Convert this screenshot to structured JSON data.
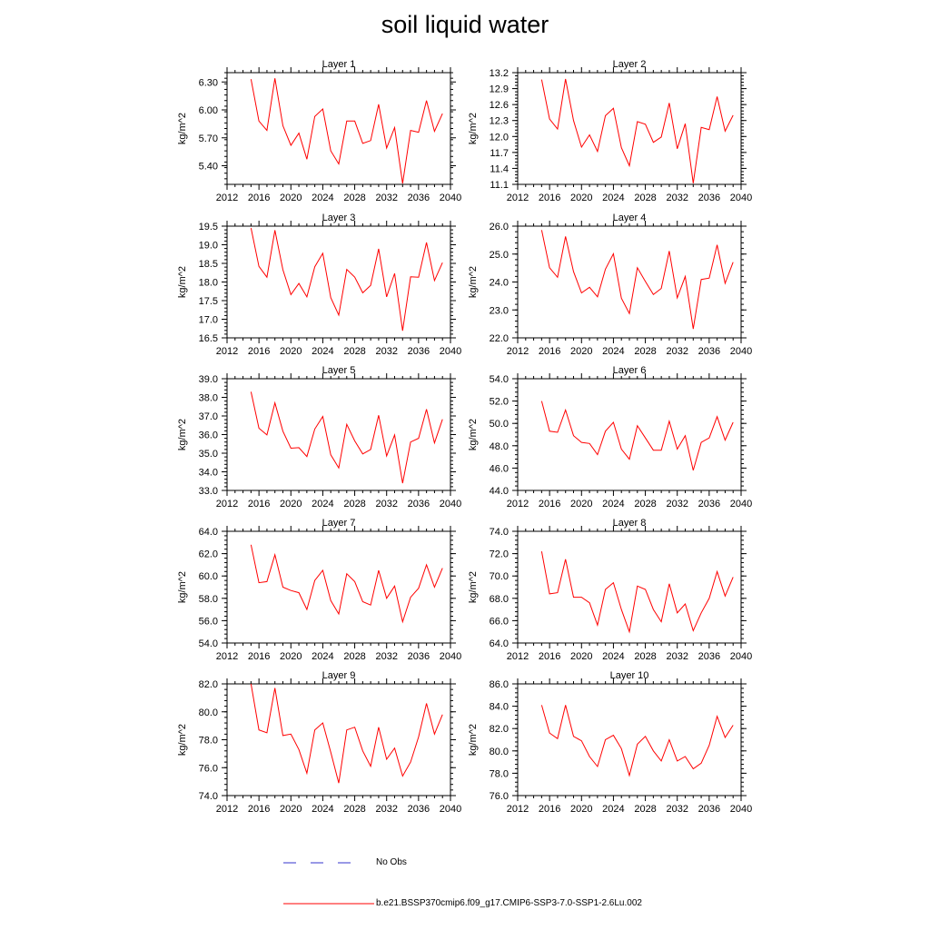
{
  "title": "soil liquid water",
  "legend": [
    {
      "label": "No Obs",
      "color": "#3333cc",
      "style": "dashed"
    },
    {
      "label": "b.e21.BSSP370cmip6.f09_g17.CMIP6-SSP3-7.0-SSP1-2.6Lu.002",
      "color": "#ff0000",
      "style": "solid"
    }
  ],
  "chart_data": [
    {
      "type": "line",
      "title": "Layer 1",
      "ylabel": "kg/m^2",
      "xlim": [
        2012,
        2040
      ],
      "ylim": [
        5.2,
        6.4
      ],
      "xticks": [
        "2012",
        "2016",
        "2020",
        "2024",
        "2028",
        "2032",
        "2036",
        "2040"
      ],
      "yticks": [
        "5.40",
        "5.70",
        "6.00",
        "6.30"
      ],
      "x": [
        2015,
        2016,
        2017,
        2018,
        2019,
        2020,
        2021,
        2022,
        2023,
        2024,
        2025,
        2026,
        2027,
        2028,
        2029,
        2030,
        2031,
        2032,
        2033,
        2034,
        2035,
        2036,
        2037,
        2038,
        2039
      ],
      "series": [
        {
          "values": [
            6.33,
            5.88,
            5.78,
            6.34,
            5.83,
            5.62,
            5.75,
            5.47,
            5.93,
            6.01,
            5.56,
            5.42,
            5.88,
            5.88,
            5.64,
            5.67,
            6.06,
            5.59,
            5.81,
            5.21,
            5.78,
            5.76,
            6.1,
            5.77,
            5.96
          ]
        }
      ]
    },
    {
      "type": "line",
      "title": "Layer 2",
      "ylabel": "kg/m^2",
      "xlim": [
        2012,
        2040
      ],
      "ylim": [
        11.1,
        13.2
      ],
      "xticks": [
        "2012",
        "2016",
        "2020",
        "2024",
        "2028",
        "2032",
        "2036",
        "2040"
      ],
      "yticks": [
        "11.1",
        "11.4",
        "11.7",
        "12.0",
        "12.3",
        "12.6",
        "12.9",
        "13.2"
      ],
      "x": [
        2015,
        2016,
        2017,
        2018,
        2019,
        2020,
        2021,
        2022,
        2023,
        2024,
        2025,
        2026,
        2027,
        2028,
        2029,
        2030,
        2031,
        2032,
        2033,
        2034,
        2035,
        2036,
        2037,
        2038,
        2039
      ],
      "series": [
        {
          "values": [
            13.07,
            12.33,
            12.14,
            13.08,
            12.3,
            11.8,
            12.03,
            11.72,
            12.39,
            12.53,
            11.79,
            11.45,
            12.28,
            12.23,
            11.89,
            11.99,
            12.63,
            11.77,
            12.24,
            11.12,
            12.17,
            12.13,
            12.75,
            12.1,
            12.4
          ]
        }
      ]
    },
    {
      "type": "line",
      "title": "Layer 3",
      "ylabel": "kg/m^2",
      "xlim": [
        2012,
        2040
      ],
      "ylim": [
        16.5,
        19.5
      ],
      "xticks": [
        "2012",
        "2016",
        "2020",
        "2024",
        "2028",
        "2032",
        "2036",
        "2040"
      ],
      "yticks": [
        "16.5",
        "17.0",
        "17.5",
        "18.0",
        "18.5",
        "19.0",
        "19.5"
      ],
      "x": [
        2015,
        2016,
        2017,
        2018,
        2019,
        2020,
        2021,
        2022,
        2023,
        2024,
        2025,
        2026,
        2027,
        2028,
        2029,
        2030,
        2031,
        2032,
        2033,
        2034,
        2035,
        2036,
        2037,
        2038,
        2039
      ],
      "series": [
        {
          "values": [
            19.45,
            18.42,
            18.13,
            19.39,
            18.33,
            17.66,
            17.96,
            17.6,
            18.41,
            18.77,
            17.58,
            17.11,
            18.34,
            18.13,
            17.71,
            17.91,
            18.89,
            17.6,
            18.23,
            16.69,
            18.14,
            18.13,
            19.06,
            18.04,
            18.52
          ]
        }
      ]
    },
    {
      "type": "line",
      "title": "Layer 4",
      "ylabel": "kg/m^2",
      "xlim": [
        2012,
        2040
      ],
      "ylim": [
        22.0,
        26.0
      ],
      "xticks": [
        "2012",
        "2016",
        "2020",
        "2024",
        "2028",
        "2032",
        "2036",
        "2040"
      ],
      "yticks": [
        "22.0",
        "23.0",
        "24.0",
        "25.0",
        "26.0"
      ],
      "x": [
        2015,
        2016,
        2017,
        2018,
        2019,
        2020,
        2021,
        2022,
        2023,
        2024,
        2025,
        2026,
        2027,
        2028,
        2029,
        2030,
        2031,
        2032,
        2033,
        2034,
        2035,
        2036,
        2037,
        2038,
        2039
      ],
      "series": [
        {
          "values": [
            25.86,
            24.51,
            24.17,
            25.63,
            24.37,
            23.61,
            23.81,
            23.47,
            24.46,
            25.01,
            23.42,
            22.87,
            24.51,
            24.02,
            23.55,
            23.77,
            25.11,
            23.43,
            24.2,
            22.32,
            24.09,
            24.14,
            25.33,
            23.95,
            24.71
          ]
        }
      ]
    },
    {
      "type": "line",
      "title": "Layer 5",
      "ylabel": "kg/m^2",
      "xlim": [
        2012,
        2040
      ],
      "ylim": [
        33.0,
        39.0
      ],
      "xticks": [
        "2012",
        "2016",
        "2020",
        "2024",
        "2028",
        "2032",
        "2036",
        "2040"
      ],
      "yticks": [
        "33.0",
        "34.0",
        "35.0",
        "36.0",
        "37.0",
        "38.0",
        "39.0"
      ],
      "x": [
        2015,
        2016,
        2017,
        2018,
        2019,
        2020,
        2021,
        2022,
        2023,
        2024,
        2025,
        2026,
        2027,
        2028,
        2029,
        2030,
        2031,
        2032,
        2033,
        2034,
        2035,
        2036,
        2037,
        2038,
        2039
      ],
      "series": [
        {
          "values": [
            38.3,
            36.34,
            35.98,
            37.7,
            36.18,
            35.27,
            35.3,
            34.82,
            36.3,
            36.97,
            34.91,
            34.21,
            36.55,
            35.66,
            34.96,
            35.2,
            37.04,
            34.85,
            35.98,
            33.39,
            35.6,
            35.8,
            37.36,
            35.55,
            36.82
          ]
        }
      ]
    },
    {
      "type": "line",
      "title": "Layer 6",
      "ylabel": "kg/m^2",
      "xlim": [
        2012,
        2040
      ],
      "ylim": [
        44.0,
        54.0
      ],
      "xticks": [
        "2012",
        "2016",
        "2020",
        "2024",
        "2028",
        "2032",
        "2036",
        "2040"
      ],
      "yticks": [
        "44.0",
        "46.0",
        "48.0",
        "50.0",
        "52.0",
        "54.0"
      ],
      "x": [
        2015,
        2016,
        2017,
        2018,
        2019,
        2020,
        2021,
        2022,
        2023,
        2024,
        2025,
        2026,
        2027,
        2028,
        2029,
        2030,
        2031,
        2032,
        2033,
        2034,
        2035,
        2036,
        2037,
        2038,
        2039
      ],
      "series": [
        {
          "values": [
            52.0,
            49.3,
            49.2,
            51.2,
            48.9,
            48.3,
            48.2,
            47.2,
            49.3,
            50.1,
            47.7,
            46.8,
            49.8,
            48.7,
            47.6,
            47.6,
            50.2,
            47.7,
            48.9,
            45.8,
            48.3,
            48.7,
            50.6,
            48.5,
            50.1
          ]
        }
      ]
    },
    {
      "type": "line",
      "title": "Layer 7",
      "ylabel": "kg/m^2",
      "xlim": [
        2012,
        2040
      ],
      "ylim": [
        54.0,
        64.0
      ],
      "xticks": [
        "2012",
        "2016",
        "2020",
        "2024",
        "2028",
        "2032",
        "2036",
        "2040"
      ],
      "yticks": [
        "54.0",
        "56.0",
        "58.0",
        "60.0",
        "62.0",
        "64.0"
      ],
      "x": [
        2015,
        2016,
        2017,
        2018,
        2019,
        2020,
        2021,
        2022,
        2023,
        2024,
        2025,
        2026,
        2027,
        2028,
        2029,
        2030,
        2031,
        2032,
        2033,
        2034,
        2035,
        2036,
        2037,
        2038,
        2039
      ],
      "series": [
        {
          "values": [
            62.8,
            59.4,
            59.5,
            61.9,
            59.0,
            58.7,
            58.5,
            57.0,
            59.6,
            60.5,
            57.8,
            56.6,
            60.2,
            59.5,
            57.7,
            57.4,
            60.5,
            58.0,
            59.1,
            55.9,
            58.1,
            58.9,
            61.0,
            59.0,
            60.7
          ]
        }
      ]
    },
    {
      "type": "line",
      "title": "Layer 8",
      "ylabel": "kg/m^2",
      "xlim": [
        2012,
        2040
      ],
      "ylim": [
        64.0,
        74.0
      ],
      "xticks": [
        "2012",
        "2016",
        "2020",
        "2024",
        "2028",
        "2032",
        "2036",
        "2040"
      ],
      "yticks": [
        "64.0",
        "66.0",
        "68.0",
        "70.0",
        "72.0",
        "74.0"
      ],
      "x": [
        2015,
        2016,
        2017,
        2018,
        2019,
        2020,
        2021,
        2022,
        2023,
        2024,
        2025,
        2026,
        2027,
        2028,
        2029,
        2030,
        2031,
        2032,
        2033,
        2034,
        2035,
        2036,
        2037,
        2038,
        2039
      ],
      "series": [
        {
          "values": [
            72.2,
            68.4,
            68.5,
            71.5,
            68.1,
            68.1,
            67.6,
            65.6,
            68.8,
            69.4,
            67.0,
            65.0,
            69.1,
            68.8,
            67.0,
            65.9,
            69.3,
            66.7,
            67.5,
            65.1,
            66.7,
            68.0,
            70.4,
            68.2,
            69.9
          ]
        }
      ]
    },
    {
      "type": "line",
      "title": "Layer 9",
      "ylabel": "kg/m^2",
      "xlim": [
        2012,
        2040
      ],
      "ylim": [
        74.0,
        82.0
      ],
      "xticks": [
        "2012",
        "2016",
        "2020",
        "2024",
        "2028",
        "2032",
        "2036",
        "2040"
      ],
      "yticks": [
        "74.0",
        "76.0",
        "78.0",
        "80.0",
        "82.0"
      ],
      "x": [
        2015,
        2016,
        2017,
        2018,
        2019,
        2020,
        2021,
        2022,
        2023,
        2024,
        2025,
        2026,
        2027,
        2028,
        2029,
        2030,
        2031,
        2032,
        2033,
        2034,
        2035,
        2036,
        2037,
        2038,
        2039
      ],
      "series": [
        {
          "values": [
            82.0,
            78.7,
            78.5,
            81.7,
            78.3,
            78.4,
            77.3,
            75.6,
            78.7,
            79.2,
            77.1,
            74.9,
            78.7,
            78.9,
            77.2,
            76.1,
            78.9,
            76.6,
            77.4,
            75.4,
            76.4,
            78.2,
            80.6,
            78.4,
            79.8
          ]
        }
      ]
    },
    {
      "type": "line",
      "title": "Layer 10",
      "ylabel": "kg/m^2",
      "xlim": [
        2012,
        2040
      ],
      "ylim": [
        76.0,
        86.0
      ],
      "xticks": [
        "2012",
        "2016",
        "2020",
        "2024",
        "2028",
        "2032",
        "2036",
        "2040"
      ],
      "yticks": [
        "76.0",
        "78.0",
        "80.0",
        "82.0",
        "84.0",
        "86.0"
      ],
      "x": [
        2015,
        2016,
        2017,
        2018,
        2019,
        2020,
        2021,
        2022,
        2023,
        2024,
        2025,
        2026,
        2027,
        2028,
        2029,
        2030,
        2031,
        2032,
        2033,
        2034,
        2035,
        2036,
        2037,
        2038,
        2039
      ],
      "series": [
        {
          "values": [
            84.1,
            81.6,
            81.1,
            84.1,
            81.3,
            80.9,
            79.5,
            78.6,
            81.0,
            81.4,
            80.2,
            77.8,
            80.6,
            81.3,
            80.0,
            79.1,
            81.0,
            79.1,
            79.5,
            78.4,
            78.9,
            80.5,
            83.1,
            81.2,
            82.3
          ]
        }
      ]
    }
  ]
}
